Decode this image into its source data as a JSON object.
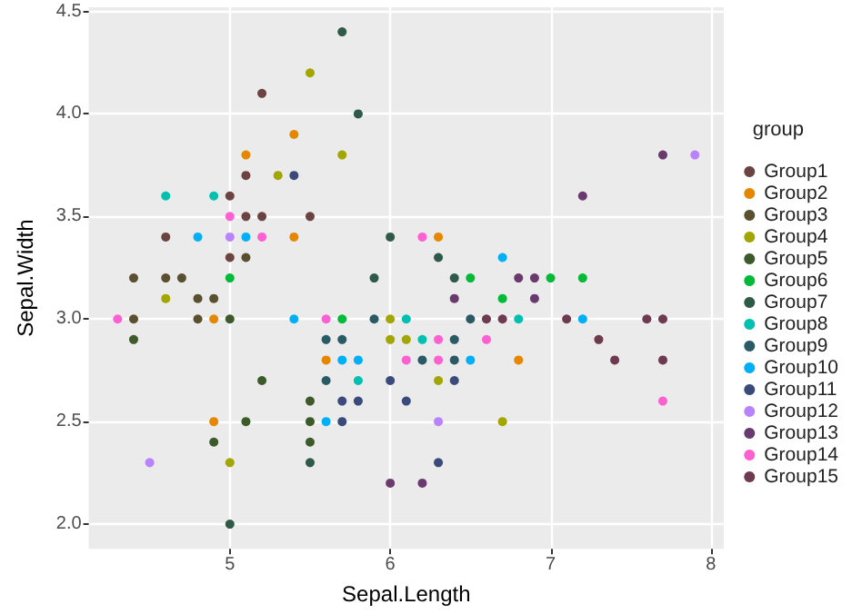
{
  "chart_data": {
    "type": "scatter",
    "xlabel": "Sepal.Length",
    "ylabel": "Sepal.Width",
    "legend_title": "group",
    "legend": "right",
    "grid": true,
    "marker": "circle",
    "xlim": [
      4.12,
      8.08
    ],
    "ylim": [
      1.88,
      4.52
    ],
    "xticks": [
      5,
      6,
      7,
      8
    ],
    "yticks": [
      {
        "value": 2,
        "label": "2.0"
      },
      {
        "value": 2.5,
        "label": "2.5"
      },
      {
        "value": 3,
        "label": "3.0"
      },
      {
        "value": 3.5,
        "label": "3.5"
      },
      {
        "value": 4,
        "label": "4.0"
      },
      {
        "value": 4.5,
        "label": "4.5"
      }
    ],
    "series": [
      {
        "name": "Group1",
        "color": "#6b4340",
        "x": [
          5.2,
          5.1,
          5.0,
          5.1,
          5.2,
          5.5,
          4.6,
          5.0
        ],
        "values": [
          4.1,
          3.7,
          3.6,
          3.5,
          3.5,
          3.5,
          3.4,
          3.3
        ]
      },
      {
        "name": "Group2",
        "color": "#e58700",
        "x": [
          5.4,
          5.1,
          5.4,
          4.9,
          5.6,
          4.9,
          6.3,
          6.8
        ],
        "values": [
          3.9,
          3.8,
          3.4,
          3.0,
          2.8,
          2.5,
          3.4,
          2.8
        ]
      },
      {
        "name": "Group3",
        "color": "#5a5030",
        "x": [
          5.1,
          4.4,
          4.6,
          4.7,
          4.8,
          4.9,
          4.4,
          4.8
        ],
        "values": [
          3.3,
          3.2,
          3.2,
          3.2,
          3.1,
          3.1,
          3.0,
          3.0
        ]
      },
      {
        "name": "Group4",
        "color": "#a3a500",
        "x": [
          5.5,
          5.7,
          5.3,
          4.6,
          5.0,
          6.0,
          6.0,
          6.1,
          6.3,
          6.7
        ],
        "values": [
          4.2,
          3.8,
          3.7,
          3.1,
          2.3,
          3.0,
          2.9,
          2.9,
          2.7,
          2.5
        ]
      },
      {
        "name": "Group5",
        "color": "#3d5a2a",
        "x": [
          5.0,
          4.4,
          5.2,
          5.5,
          5.1,
          5.5,
          4.9,
          5.5
        ],
        "values": [
          3.0,
          2.9,
          2.7,
          2.6,
          2.5,
          2.5,
          2.4,
          2.4
        ]
      },
      {
        "name": "Group6",
        "color": "#00ba38",
        "x": [
          5.0,
          5.7,
          6.5,
          7.0,
          7.2,
          6.7
        ],
        "values": [
          3.2,
          3.0,
          3.2,
          3.2,
          3.2,
          3.1
        ]
      },
      {
        "name": "Group7",
        "color": "#2f5a48",
        "x": [
          5.5,
          5.0,
          5.7,
          5.8,
          6.0,
          6.3,
          5.9,
          6.4
        ],
        "values": [
          2.3,
          2.0,
          4.4,
          4.0,
          3.4,
          3.3,
          3.2,
          3.2
        ]
      },
      {
        "name": "Group8",
        "color": "#00c0af",
        "x": [
          4.6,
          4.9,
          6.1,
          6.2,
          5.8,
          6.8
        ],
        "values": [
          3.6,
          3.6,
          3.0,
          2.9,
          2.7,
          3.0
        ]
      },
      {
        "name": "Group9",
        "color": "#2a5a66",
        "x": [
          5.9,
          6.5,
          5.6,
          5.7,
          6.4,
          6.2,
          6.4,
          5.6
        ],
        "values": [
          3.0,
          3.0,
          2.9,
          2.9,
          2.9,
          2.8,
          2.8,
          2.7
        ]
      },
      {
        "name": "Group10",
        "color": "#00b0f6",
        "x": [
          4.8,
          5.1,
          5.4,
          5.7,
          5.8,
          6.5,
          5.6,
          6.7,
          7.2
        ],
        "values": [
          3.4,
          3.4,
          3.0,
          2.8,
          2.8,
          2.8,
          2.5,
          3.3,
          3.0
        ]
      },
      {
        "name": "Group11",
        "color": "#3a4a7a",
        "x": [
          5.4,
          6.0,
          6.4,
          5.7,
          5.8,
          6.1,
          5.7,
          6.3
        ],
        "values": [
          3.7,
          2.7,
          2.7,
          2.6,
          2.6,
          2.6,
          2.5,
          2.3
        ]
      },
      {
        "name": "Group12",
        "color": "#b983ff",
        "x": [
          5.0,
          4.5,
          6.3,
          7.9
        ],
        "values": [
          3.4,
          2.3,
          2.5,
          3.8
        ]
      },
      {
        "name": "Group13",
        "color": "#6a3a6e",
        "x": [
          6.0,
          6.2,
          7.7,
          7.2,
          6.8,
          6.9,
          6.4,
          6.9
        ],
        "values": [
          2.2,
          2.2,
          3.8,
          3.6,
          3.2,
          3.2,
          3.1,
          3.1
        ]
      },
      {
        "name": "Group14",
        "color": "#fd61d1",
        "x": [
          5.0,
          5.2,
          4.3,
          5.6,
          6.2,
          6.3,
          6.1,
          6.3,
          6.6,
          7.7
        ],
        "values": [
          3.5,
          3.4,
          3.0,
          3.0,
          3.4,
          2.9,
          2.8,
          2.8,
          2.9,
          2.6
        ]
      },
      {
        "name": "Group15",
        "color": "#6e3a50",
        "x": [
          6.6,
          6.7,
          7.1,
          7.6,
          7.7,
          7.3,
          7.4,
          7.7
        ],
        "values": [
          3.0,
          3.0,
          3.0,
          3.0,
          3.0,
          2.9,
          2.8,
          2.8
        ]
      }
    ]
  }
}
